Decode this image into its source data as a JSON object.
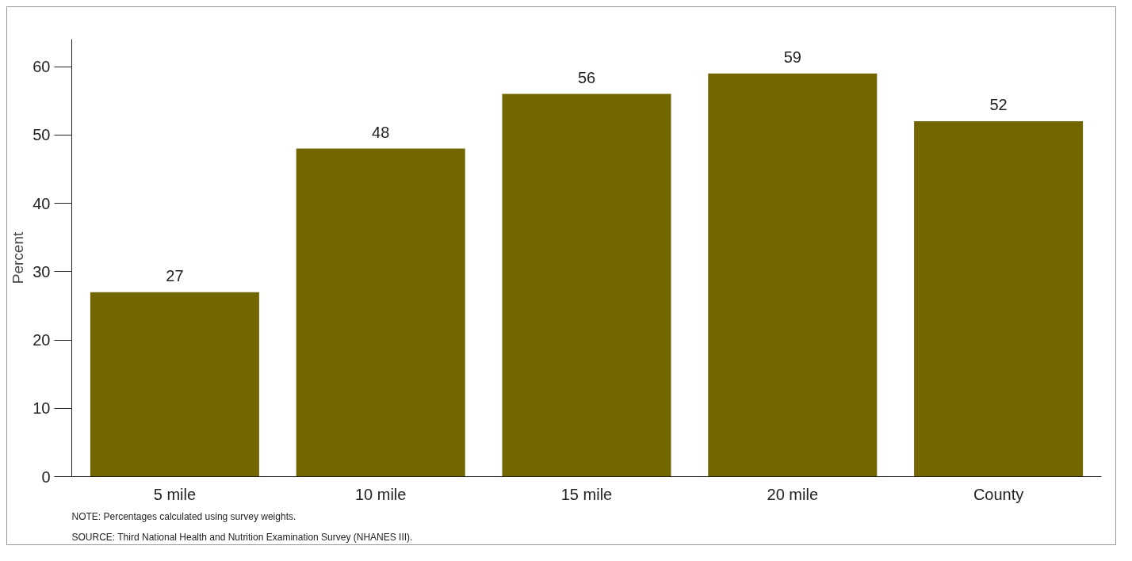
{
  "chart_data": {
    "type": "bar",
    "ylabel": "Percent",
    "categories": [
      "5 mile",
      "10 mile",
      "15 mile",
      "20 mile",
      "County"
    ],
    "values": [
      27,
      48,
      56,
      59,
      52
    ],
    "color": "#726600",
    "data_labels": true,
    "ylim": [
      0,
      64
    ],
    "yticks": [
      0,
      10,
      20,
      30,
      40,
      50,
      60
    ],
    "grid": false,
    "annotations": [
      "NOTE: Percentages calculated using survey weights.",
      "SOURCE: Third National Health and Nutrition Examination Survey (NHANES III)."
    ]
  }
}
